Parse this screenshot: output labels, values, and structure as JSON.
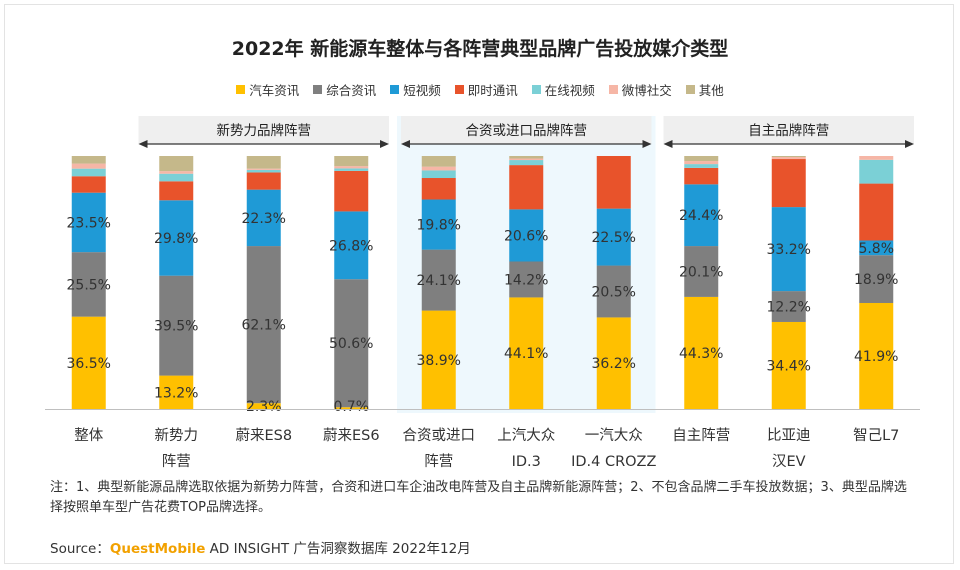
{
  "colors": {
    "series": [
      "#ffc000",
      "#7f7f7f",
      "#1f9ad6",
      "#e8532b",
      "#7bd0d6",
      "#f6b6a6",
      "#c5b88a"
    ],
    "group_band": "#eef8fd",
    "group_header": "#efefef",
    "brand": "#f2a100"
  },
  "source": {
    "prefix": "Source：",
    "brand": "QuestMobile",
    "suffix": " AD INSIGHT 广告洞察数据库 2022年12月"
  },
  "note": "注：1、典型新能源品牌选取依据为新势力阵营，合资和进口车企油改电阵营及自主品牌新能源阵营；2、不包含品牌二手车投放数据；3、典型品牌选择按照单车型广告花费TOP品牌选择。",
  "chart_data": {
    "type": "bar",
    "stacked": true,
    "percent": true,
    "title": "2022年 新能源车整体与各阵营典型品牌广告投放媒介类型",
    "ylim": [
      0,
      100
    ],
    "legend_position": "top",
    "categories": [
      [
        "整体"
      ],
      [
        "新势力",
        "阵营"
      ],
      [
        "蔚来ES8"
      ],
      [
        "蔚来ES6"
      ],
      [
        "合资或进口",
        "阵营"
      ],
      [
        "上汽大众",
        "ID.3"
      ],
      [
        "一汽大众",
        "ID.4 CROZZ"
      ],
      [
        "自主阵营"
      ],
      [
        "比亚迪",
        "汉EV"
      ],
      [
        "智己L7"
      ]
    ],
    "groups": [
      {
        "label": "新势力品牌阵营",
        "from": 1,
        "to": 3
      },
      {
        "label": "合资或进口品牌阵营",
        "from": 4,
        "to": 6
      },
      {
        "label": "自主品牌阵营",
        "from": 7,
        "to": 9
      }
    ],
    "series": [
      {
        "name": "汽车资讯",
        "values": [
          36.5,
          13.2,
          2.3,
          0.7,
          38.9,
          44.1,
          36.2,
          44.3,
          34.4,
          41.9
        ],
        "labels": [
          "36.5%",
          "13.2%",
          "2.3%",
          "0.7%",
          "38.9%",
          "44.1%",
          "36.2%",
          "44.3%",
          "34.4%",
          "41.9%"
        ]
      },
      {
        "name": "综合资讯",
        "values": [
          25.5,
          39.5,
          62.1,
          50.6,
          24.1,
          14.2,
          20.5,
          20.1,
          12.2,
          18.9
        ],
        "labels": [
          "25.5%",
          "39.5%",
          "62.1%",
          "50.6%",
          "24.1%",
          "14.2%",
          "20.5%",
          "20.1%",
          "12.2%",
          "18.9%"
        ]
      },
      {
        "name": "短视频",
        "values": [
          23.5,
          29.8,
          22.3,
          26.8,
          19.8,
          20.6,
          22.5,
          24.4,
          33.2,
          5.8
        ],
        "labels": [
          "23.5%",
          "29.8%",
          "22.3%",
          "26.8%",
          "19.8%",
          "20.6%",
          "22.5%",
          "24.4%",
          "33.2%",
          "5.8%"
        ]
      },
      {
        "name": "即时通讯",
        "values": [
          6.5,
          7.5,
          6.8,
          16.0,
          8.5,
          17.5,
          20.8,
          6.5,
          19.0,
          22.5
        ],
        "labels": [
          "",
          "",
          "",
          "",
          "",
          "",
          "",
          "",
          "",
          ""
        ]
      },
      {
        "name": "在线视频",
        "values": [
          3.0,
          3.0,
          1.0,
          1.0,
          3.0,
          2.0,
          0.0,
          1.5,
          0.0,
          9.4
        ],
        "labels": [
          "",
          "",
          "",
          "",
          "",
          "",
          "",
          "",
          "",
          ""
        ]
      },
      {
        "name": "微博社交",
        "values": [
          2.0,
          1.0,
          0.5,
          0.9,
          1.5,
          0.6,
          0.0,
          1.2,
          0.8,
          1.5
        ],
        "labels": [
          "",
          "",
          "",
          "",
          "",
          "",
          "",
          "",
          "",
          ""
        ]
      },
      {
        "name": "其他",
        "values": [
          3.0,
          6.0,
          5.0,
          4.0,
          4.2,
          1.0,
          0.0,
          2.0,
          0.4,
          0.0
        ],
        "labels": [
          "",
          "",
          "",
          "",
          "",
          "",
          "",
          "",
          "",
          ""
        ]
      }
    ]
  }
}
